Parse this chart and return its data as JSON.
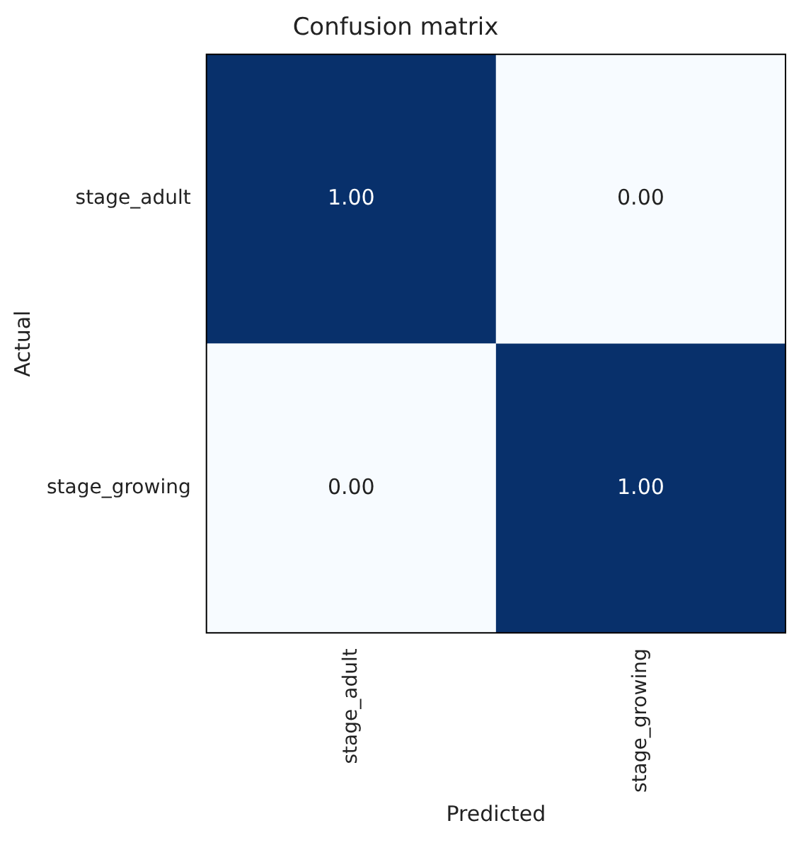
{
  "chart_data": {
    "type": "heatmap",
    "title": "Confusion matrix",
    "xlabel": "Predicted",
    "ylabel": "Actual",
    "categories": [
      "stage_adult",
      "stage_growing"
    ],
    "y_categories": [
      "stage_adult",
      "stage_growing"
    ],
    "cells": [
      [
        1,
        0
      ],
      [
        0,
        1
      ]
    ],
    "cell_labels": [
      [
        "1.00",
        "0.00"
      ],
      [
        "0.00",
        "1.00"
      ]
    ]
  }
}
